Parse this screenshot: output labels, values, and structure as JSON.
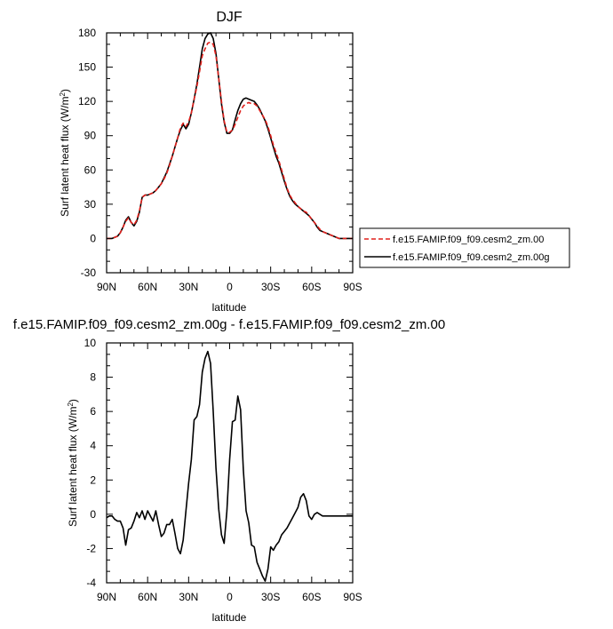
{
  "chart_data": [
    {
      "type": "line",
      "title": "DJF",
      "xlabel": "latitude",
      "ylabel": "Surf latent heat flux (W/m²)",
      "ylabel_main": "Surf latent heat flux (W/m",
      "ylabel_sup": "2",
      "ylabel_close": ")",
      "xlim": [
        90,
        -90
      ],
      "ylim": [
        -30,
        180
      ],
      "xticks": [
        {
          "value": 90,
          "label": "90N"
        },
        {
          "value": 60,
          "label": "60N"
        },
        {
          "value": 30,
          "label": "30N"
        },
        {
          "value": 0,
          "label": "0"
        },
        {
          "value": -30,
          "label": "30S"
        },
        {
          "value": -60,
          "label": "60S"
        },
        {
          "value": -90,
          "label": "90S"
        }
      ],
      "yticks": [
        {
          "value": -30,
          "label": "-30"
        },
        {
          "value": 0,
          "label": "0"
        },
        {
          "value": 30,
          "label": "30"
        },
        {
          "value": 60,
          "label": "60"
        },
        {
          "value": 90,
          "label": "90"
        },
        {
          "value": 120,
          "label": "120"
        },
        {
          "value": 150,
          "label": "150"
        },
        {
          "value": 180,
          "label": "180"
        }
      ],
      "legend_position": "right",
      "series": [
        {
          "name": "f.e15.FAMIP.f09_f09.cesm2_zm.00",
          "color": "#e0201b",
          "dash": "dashed",
          "x": [
            90,
            88,
            86,
            84,
            82,
            80,
            78,
            76,
            74,
            72,
            70,
            68,
            66,
            64,
            62,
            60,
            58,
            56,
            54,
            52,
            50,
            48,
            46,
            44,
            42,
            40,
            38,
            36,
            34,
            32,
            30,
            28,
            26,
            24,
            22,
            20,
            18,
            16,
            14,
            12,
            10,
            8,
            6,
            4,
            2,
            0,
            -2,
            -4,
            -6,
            -8,
            -10,
            -12,
            -14,
            -16,
            -18,
            -20,
            -22,
            -24,
            -26,
            -28,
            -30,
            -32,
            -34,
            -36,
            -38,
            -40,
            -42,
            -44,
            -46,
            -48,
            -50,
            -52,
            -54,
            -56,
            -58,
            -60,
            -62,
            -64,
            -66,
            -68,
            -70,
            -72,
            -74,
            -76,
            -78,
            -80,
            -82,
            -84,
            -86,
            -88,
            -90
          ],
          "y": [
            0,
            0,
            0,
            1,
            2,
            5,
            10,
            15,
            18,
            14,
            12,
            16,
            24,
            36,
            38,
            38,
            39,
            40,
            42,
            45,
            48,
            52,
            57,
            64,
            72,
            80,
            88,
            97,
            101,
            98,
            102,
            110,
            122,
            133,
            146,
            160,
            166,
            171,
            172,
            170,
            160,
            140,
            120,
            103,
            93,
            93,
            95,
            100,
            106,
            112,
            116,
            118,
            119,
            118,
            118,
            116,
            112,
            108,
            104,
            98,
            90,
            82,
            75,
            68,
            60,
            52,
            44,
            38,
            34,
            31,
            28,
            26,
            24,
            23,
            20,
            17,
            14,
            11,
            8,
            6,
            5,
            4,
            3,
            2,
            1,
            0,
            0,
            0,
            0,
            0,
            0
          ]
        },
        {
          "name": "f.e15.FAMIP.f09_f09.cesm2_zm.00g",
          "color": "#000000",
          "dash": "solid",
          "x": [
            90,
            88,
            86,
            84,
            82,
            80,
            78,
            76,
            74,
            72,
            70,
            68,
            66,
            64,
            62,
            60,
            58,
            56,
            54,
            52,
            50,
            48,
            46,
            44,
            42,
            40,
            38,
            36,
            34,
            32,
            30,
            28,
            26,
            24,
            22,
            20,
            18,
            16,
            14,
            12,
            10,
            8,
            6,
            4,
            2,
            0,
            -2,
            -4,
            -6,
            -8,
            -10,
            -12,
            -14,
            -16,
            -18,
            -20,
            -22,
            -24,
            -26,
            -28,
            -30,
            -32,
            -34,
            -36,
            -38,
            -40,
            -42,
            -44,
            -46,
            -48,
            -50,
            -52,
            -54,
            -56,
            -58,
            -60,
            -62,
            -64,
            -66,
            -68,
            -70,
            -72,
            -74,
            -76,
            -78,
            -80,
            -82,
            -84,
            -86,
            -88,
            -90
          ],
          "y": [
            0,
            0,
            0,
            1,
            2,
            5,
            10,
            16,
            19,
            14,
            11,
            15,
            23,
            36,
            38,
            38,
            39,
            40,
            42,
            45,
            48,
            53,
            58,
            65,
            72,
            80,
            88,
            95,
            100,
            96,
            100,
            110,
            122,
            135,
            150,
            166,
            175,
            179,
            180,
            175,
            162,
            140,
            118,
            102,
            92,
            92,
            95,
            104,
            112,
            118,
            122,
            123,
            122,
            121,
            120,
            117,
            113,
            108,
            103,
            96,
            88,
            80,
            72,
            66,
            58,
            50,
            43,
            37,
            33,
            30,
            28,
            26,
            24,
            22,
            20,
            17,
            14,
            10,
            7,
            6,
            5,
            4,
            3,
            2,
            1,
            0,
            0,
            0,
            0,
            0,
            0
          ]
        }
      ]
    },
    {
      "type": "line",
      "title": "f.e15.FAMIP.f09_f09.cesm2_zm.00g - f.e15.FAMIP.f09_f09.cesm2_zm.00",
      "xlabel": "latitude",
      "ylabel": "Surf latent heat flux (W/m²)",
      "ylabel_main": "Surf latent heat flux (W/m",
      "ylabel_sup": "2",
      "ylabel_close": ")",
      "xlim": [
        90,
        -90
      ],
      "ylim": [
        -4,
        10
      ],
      "xticks": [
        {
          "value": 90,
          "label": "90N"
        },
        {
          "value": 60,
          "label": "60N"
        },
        {
          "value": 30,
          "label": "30N"
        },
        {
          "value": 0,
          "label": "0"
        },
        {
          "value": -30,
          "label": "30S"
        },
        {
          "value": -60,
          "label": "60S"
        },
        {
          "value": -90,
          "label": "90S"
        }
      ],
      "yticks": [
        {
          "value": -4,
          "label": "-4"
        },
        {
          "value": -2,
          "label": "-2"
        },
        {
          "value": 0,
          "label": "0"
        },
        {
          "value": 2,
          "label": "2"
        },
        {
          "value": 4,
          "label": "4"
        },
        {
          "value": 6,
          "label": "6"
        },
        {
          "value": 8,
          "label": "8"
        },
        {
          "value": 10,
          "label": "10"
        }
      ],
      "series": [
        {
          "color": "#000000",
          "dash": "solid",
          "x": [
            90,
            88,
            86,
            84,
            82,
            80,
            78,
            76,
            74,
            72,
            70,
            68,
            66,
            64,
            62,
            60,
            58,
            56,
            54,
            52,
            50,
            48,
            46,
            44,
            42,
            40,
            38,
            36,
            34,
            32,
            30,
            28,
            26,
            24,
            22,
            20,
            18,
            16,
            14,
            12,
            10,
            8,
            6,
            4,
            2,
            0,
            -2,
            -4,
            -6,
            -8,
            -10,
            -12,
            -14,
            -16,
            -18,
            -20,
            -22,
            -24,
            -26,
            -28,
            -30,
            -32,
            -34,
            -36,
            -38,
            -40,
            -42,
            -44,
            -46,
            -48,
            -50,
            -52,
            -54,
            -56,
            -58,
            -60,
            -62,
            -64,
            -66,
            -68,
            -70,
            -72,
            -74,
            -76,
            -78,
            -80,
            -82,
            -84,
            -86,
            -88,
            -90
          ],
          "y": [
            -0.2,
            -0.1,
            -0.1,
            -0.3,
            -0.4,
            -0.4,
            -0.8,
            -1.8,
            -0.9,
            -0.8,
            -0.4,
            0.1,
            -0.2,
            0.2,
            -0.3,
            0.2,
            -0.1,
            -0.4,
            0.2,
            -0.6,
            -1.3,
            -1.1,
            -0.6,
            -0.6,
            -0.3,
            -1.1,
            -2.0,
            -2.3,
            -1.5,
            0.2,
            1.8,
            3.2,
            5.5,
            5.7,
            6.4,
            8.3,
            9.1,
            9.5,
            8.8,
            6.0,
            2.7,
            0.3,
            -1.2,
            -1.7,
            0.2,
            3.2,
            5.4,
            5.5,
            6.9,
            6.1,
            2.6,
            0.2,
            -0.5,
            -1.8,
            -1.9,
            -2.8,
            -3.2,
            -3.6,
            -3.9,
            -3.2,
            -1.9,
            -2.1,
            -1.8,
            -1.6,
            -1.2,
            -1.0,
            -0.8,
            -0.5,
            -0.2,
            0.1,
            0.4,
            1.0,
            1.2,
            0.8,
            -0.1,
            -0.3,
            0.0,
            0.1,
            0.0,
            -0.1,
            -0.1,
            -0.1,
            -0.1,
            -0.1,
            -0.1,
            -0.1,
            -0.1,
            -0.1,
            -0.1,
            -0.1,
            -0.1
          ]
        }
      ]
    }
  ]
}
